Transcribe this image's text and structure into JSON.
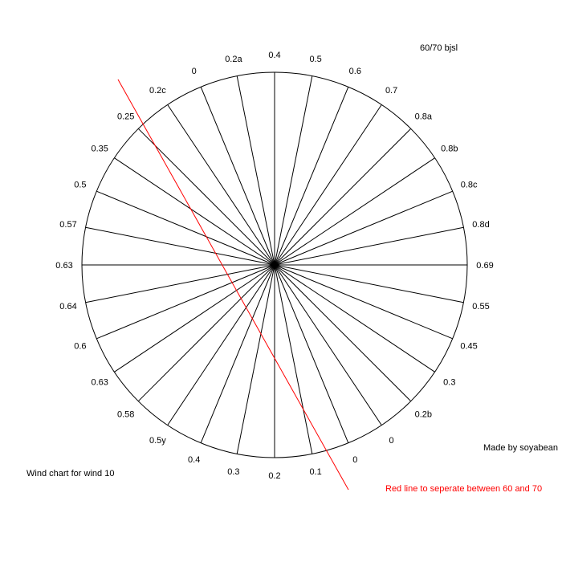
{
  "header_note": "60/70 bjsl",
  "footer_left": "Wind chart for wind 10",
  "credit": "Made by soyabean",
  "red_line_note": "Red line to seperate between 60 and 70",
  "colors": {
    "divider_line": "#ff0000",
    "red_note": "#ff0000",
    "spokes": "#000000"
  },
  "spoke_labels": [
    "0.4",
    "0.5",
    "0.6",
    "0.7",
    "0.8a",
    "0.8b",
    "0.8c",
    "0.8d",
    "0.69",
    "0.55",
    "0.45",
    "0.3",
    "0.2b",
    "0",
    "0",
    "0.1",
    "0.2",
    "0.3",
    "0.4",
    "0.5y",
    "0.58",
    "0.63",
    "0.6",
    "0.64",
    "0.63",
    "0.57",
    "0.5",
    "0.35",
    "0.25",
    "0.2c",
    "0",
    "0.2a"
  ]
}
